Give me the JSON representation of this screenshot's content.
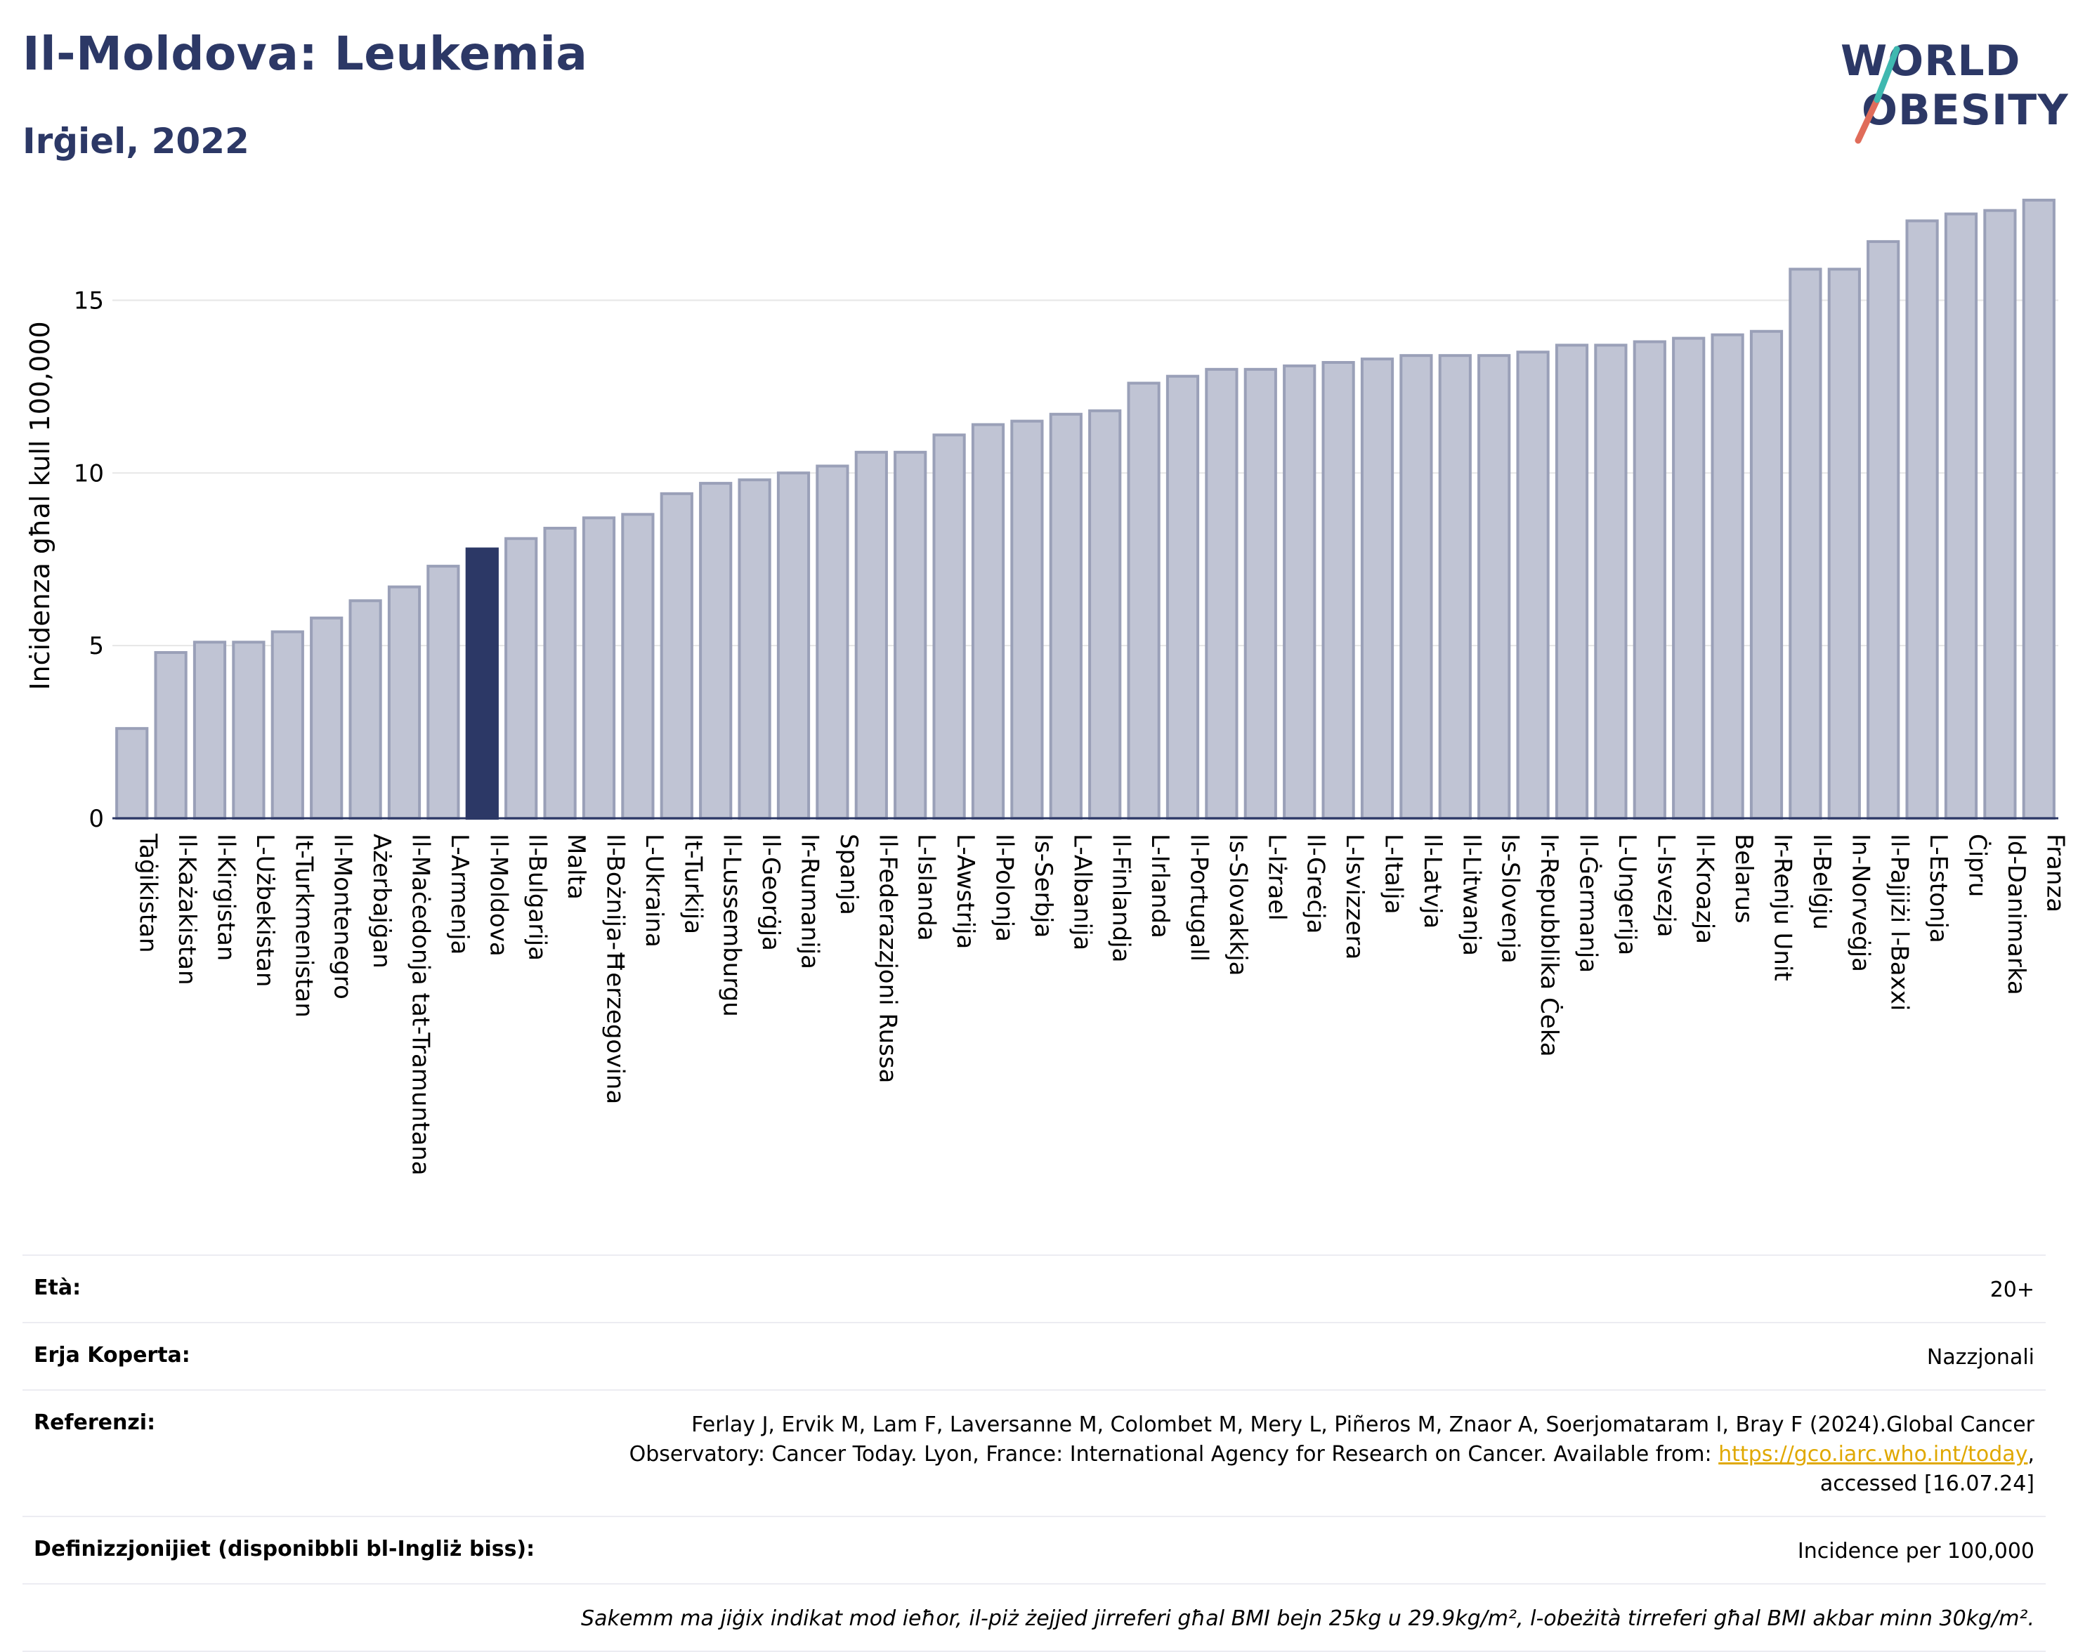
{
  "header": {
    "title": "Il-Moldova: Leukemia",
    "subtitle": "Irġiel, 2022"
  },
  "logo": {
    "line1": "WORLD",
    "line2": "OBESITY",
    "colors": [
      "#2c3866",
      "#e06c5a",
      "#3fb8b0"
    ]
  },
  "colors": {
    "bar": "#c0c4d4",
    "bar_stroke": "#9aa0b8",
    "highlight": "#2c3866",
    "grid": "#e6e6e6"
  },
  "chart_data": {
    "type": "bar",
    "ylabel": "Inċidenza għal kull 100,000",
    "ylim": [
      0,
      18
    ],
    "yticks": [
      0,
      5,
      10,
      15
    ],
    "grid": true,
    "highlight": "Il-Moldova",
    "categories": [
      "Taġikistan",
      "Il-Każakistan",
      "Il-Kirgistan",
      "L-Użbekistan",
      "It-Turkmenistan",
      "Il-Montenegro",
      "Ażerbajġan",
      "Il-Maċedonja tat-Tramuntana",
      "L-Armenja",
      "Il-Moldova",
      "Il-Bulgarija",
      "Malta",
      "Il-Bożnija-Ħerzegovina",
      "L-Ukraina",
      "It-Turkija",
      "Il-Lussemburgu",
      "Il-Georġja",
      "Ir-Rumanija",
      "Spanja",
      "Il-Federazzjoni Russa",
      "L-Islanda",
      "L-Awstrija",
      "Il-Polonja",
      "Is-Serbja",
      "L-Albanija",
      "Il-Finlandja",
      "L-Irlanda",
      "Il-Portugall",
      "Is-Slovakkja",
      "L-Iżrael",
      "Il-Greċja",
      "L-Isvizzera",
      "L-Italja",
      "Il-Latvja",
      "Il-Litwanja",
      "Is-Slovenja",
      "Ir-Repubblika Ċeka",
      "Il-Ġermanja",
      "L-Ungerija",
      "L-Isvezja",
      "Il-Kroazja",
      "Belarus",
      "Ir-Renju Unit",
      "Il-Belġju",
      "In-Norveġja",
      "Il-Pajjiżi l-Baxxi",
      "L-Estonja",
      "Ċipru",
      "Id-Danimarka",
      "Franza"
    ],
    "values": [
      2.6,
      4.8,
      5.1,
      5.1,
      5.4,
      5.8,
      6.3,
      6.7,
      7.3,
      7.8,
      8.1,
      8.4,
      8.7,
      8.8,
      9.4,
      9.7,
      9.8,
      10.0,
      10.2,
      10.6,
      10.6,
      11.1,
      11.4,
      11.5,
      11.7,
      11.8,
      12.6,
      12.8,
      13.0,
      13.0,
      13.1,
      13.2,
      13.3,
      13.4,
      13.4,
      13.4,
      13.5,
      13.7,
      13.7,
      13.8,
      13.9,
      14.0,
      14.1,
      15.9,
      15.9,
      16.7,
      17.3,
      17.5,
      17.6,
      17.9
    ]
  },
  "info": {
    "age_label": "Età:",
    "age_value": "20+",
    "coverage_label": "Erja Koperta:",
    "coverage_value": "Nazzjonali",
    "references_label": "Referenzi:",
    "references_text_1": "Ferlay J, Ervik M, Lam F, Laversanne M, Colombet M, Mery L, Piñeros M, Znaor A, Soerjomataram I, Bray F (2024).Global Cancer",
    "references_text_2": "Observatory: Cancer Today. Lyon, France: International Agency for Research on Cancer. Available from: ",
    "references_link": "https://gco.iarc.who.int/today",
    "references_text_3": ",",
    "references_text_4": "accessed [16.07.24]",
    "definitions_label": "Definizzjonijiet (disponibbli bl-Ingliż biss):",
    "definitions_value": "Incidence per 100,000",
    "note": "Sakemm ma jiġix indikat mod ieħor, il-piż żejjed jirreferi għal BMI bejn 25kg u 29.9kg/m², l-obeżità tirreferi għal BMI akbar minn 30kg/m²."
  }
}
